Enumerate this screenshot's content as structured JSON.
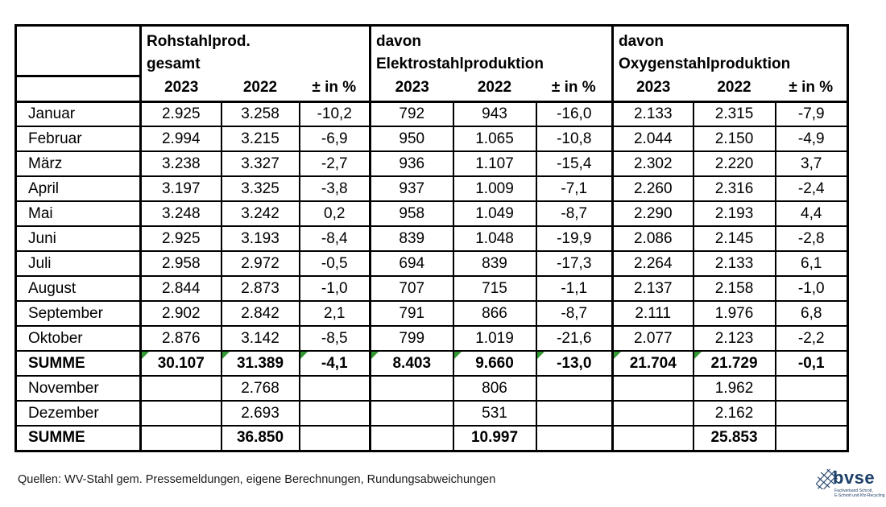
{
  "chart_data": {
    "type": "table",
    "groups": [
      {
        "title": [
          "Rohstahlprod.",
          "gesamt"
        ]
      },
      {
        "title": [
          "davon",
          "Elektrostahlproduktion"
        ]
      },
      {
        "title": [
          "davon",
          "Oxygenstahlproduktion"
        ]
      }
    ],
    "sub_columns": [
      "2023",
      "2022",
      "± in %"
    ],
    "rows": [
      {
        "label": "Januar",
        "values": [
          "2.925",
          "3.258",
          "-10,2",
          "792",
          "943",
          "-16,0",
          "2.133",
          "2.315",
          "-7,9"
        ]
      },
      {
        "label": "Februar",
        "values": [
          "2.994",
          "3.215",
          "-6,9",
          "950",
          "1.065",
          "-10,8",
          "2.044",
          "2.150",
          "-4,9"
        ]
      },
      {
        "label": "März",
        "values": [
          "3.238",
          "3.327",
          "-2,7",
          "936",
          "1.107",
          "-15,4",
          "2.302",
          "2.220",
          "3,7"
        ]
      },
      {
        "label": "April",
        "values": [
          "3.197",
          "3.325",
          "-3,8",
          "937",
          "1.009",
          "-7,1",
          "2.260",
          "2.316",
          "-2,4"
        ]
      },
      {
        "label": "Mai",
        "values": [
          "3.248",
          "3.242",
          "0,2",
          "958",
          "1.049",
          "-8,7",
          "2.290",
          "2.193",
          "4,4"
        ]
      },
      {
        "label": "Juni",
        "values": [
          "2.925",
          "3.193",
          "-8,4",
          "839",
          "1.048",
          "-19,9",
          "2.086",
          "2.145",
          "-2,8"
        ]
      },
      {
        "label": "Juli",
        "values": [
          "2.958",
          "2.972",
          "-0,5",
          "694",
          "839",
          "-17,3",
          "2.264",
          "2.133",
          "6,1"
        ]
      },
      {
        "label": "August",
        "values": [
          "2.844",
          "2.873",
          "-1,0",
          "707",
          "715",
          "-1,1",
          "2.137",
          "2.158",
          "-1,0"
        ]
      },
      {
        "label": "September",
        "values": [
          "2.902",
          "2.842",
          "2,1",
          "791",
          "866",
          "-8,7",
          "2.111",
          "1.976",
          "6,8"
        ]
      },
      {
        "label": "Oktober",
        "values": [
          "2.876",
          "3.142",
          "-8,5",
          "799",
          "1.019",
          "-21,6",
          "2.077",
          "2.123",
          "-2,2"
        ]
      },
      {
        "label": "SUMME",
        "bold": true,
        "flags": [
          0,
          1,
          2,
          3,
          4,
          5,
          6,
          7
        ],
        "values": [
          "30.107",
          "31.389",
          "-4,1",
          "8.403",
          "9.660",
          "-13,0",
          "21.704",
          "21.729",
          "-0,1"
        ]
      },
      {
        "label": "November",
        "values": [
          "",
          "2.768",
          "",
          "",
          "806",
          "",
          "",
          "1.962",
          ""
        ]
      },
      {
        "label": "Dezember",
        "values": [
          "",
          "2.693",
          "",
          "",
          "531",
          "",
          "",
          "2.162",
          ""
        ]
      },
      {
        "label": "SUMME",
        "bold": true,
        "values": [
          "",
          "36.850",
          "",
          "",
          "10.997",
          "",
          "",
          "25.853",
          ""
        ]
      }
    ]
  },
  "footer": {
    "source_note": "Quellen: WV-Stahl gem. Pressemeldungen, eigene Berechnungen, Rundungsabweichungen"
  },
  "logo": {
    "name": "bvse",
    "tagline_line1": "Fachverband Schrott,",
    "tagline_line2": "E-Schrott und Kfz-Recycling",
    "color": "#1d4068"
  },
  "colors": {
    "border": "#000000",
    "text": "#000000",
    "flag_green": "#339933"
  }
}
